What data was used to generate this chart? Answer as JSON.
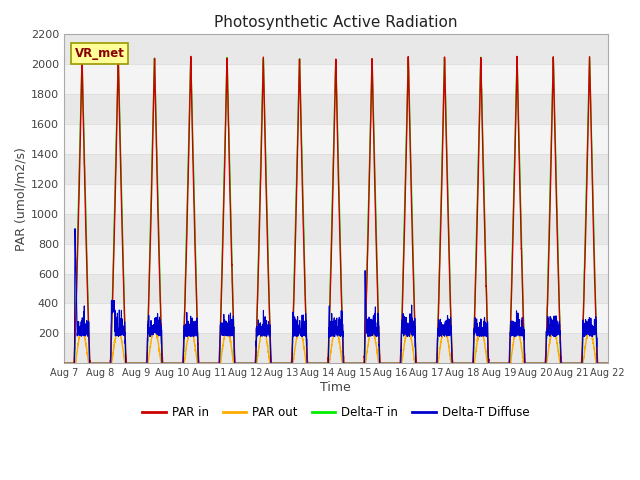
{
  "title": "Photosynthetic Active Radiation",
  "xlabel": "Time",
  "ylabel": "PAR (umol/m2/s)",
  "ylim": [
    0,
    2200
  ],
  "yticks": [
    200,
    400,
    600,
    800,
    1000,
    1200,
    1400,
    1600,
    1800,
    2000,
    2200
  ],
  "num_days": 15,
  "peak_par": 2050,
  "background_color": "#ffffff",
  "grid_color": "#dddddd",
  "colors": {
    "par_in": "#cc0000",
    "par_out": "#ffaa00",
    "delta_t_in": "#00ee00",
    "delta_t_diffuse": "#0000cc"
  },
  "legend_labels": [
    "PAR in",
    "PAR out",
    "Delta-T in",
    "Delta-T Diffuse"
  ],
  "annotation_text": "VR_met"
}
